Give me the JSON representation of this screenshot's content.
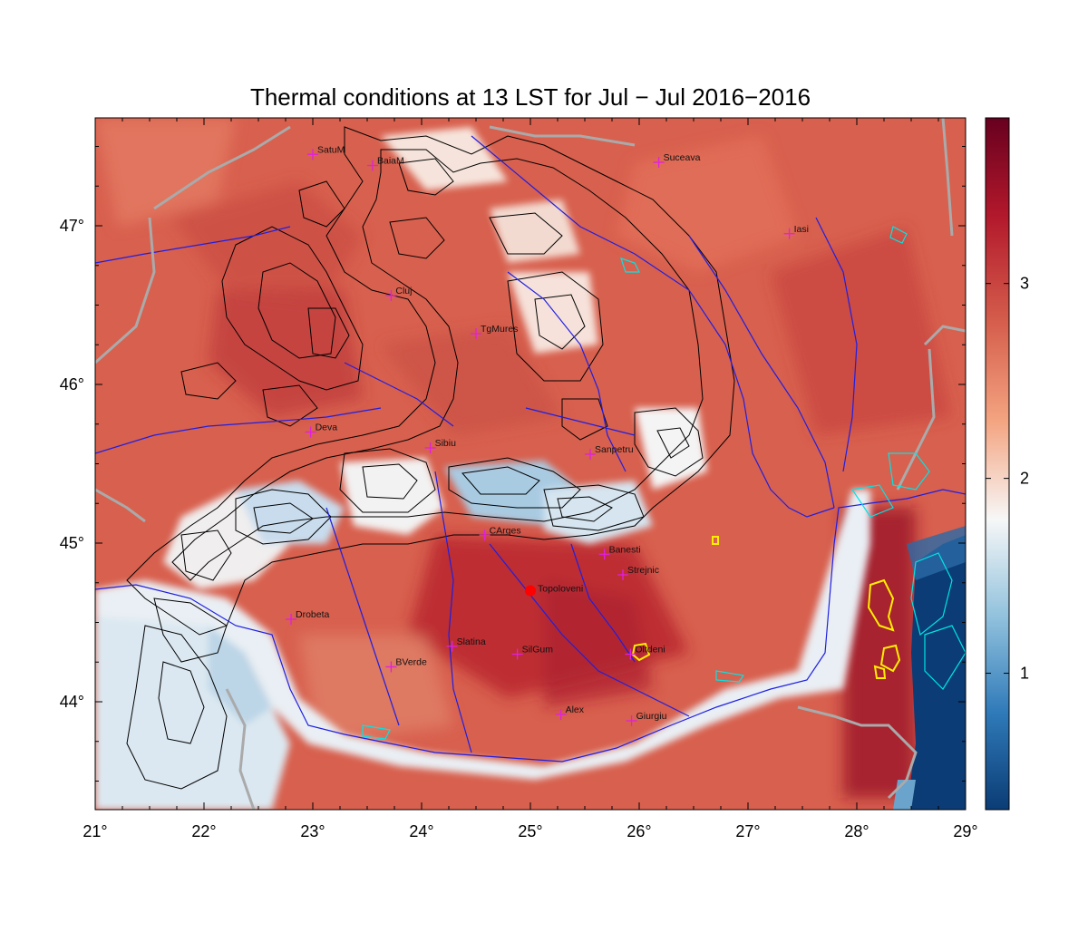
{
  "title": "Thermal conditions at 13 LST for Jul − Jul  2016−2016",
  "map": {
    "lon_range": [
      21,
      29
    ],
    "lat_range": [
      43.32,
      47.68
    ],
    "x_ticks": [
      {
        "value": 21,
        "label": "21°"
      },
      {
        "value": 22,
        "label": "22°"
      },
      {
        "value": 23,
        "label": "23°"
      },
      {
        "value": 24,
        "label": "24°"
      },
      {
        "value": 25,
        "label": "25°"
      },
      {
        "value": 26,
        "label": "26°"
      },
      {
        "value": 27,
        "label": "27°"
      },
      {
        "value": 28,
        "label": "28°"
      },
      {
        "value": 29,
        "label": "29°"
      }
    ],
    "y_ticks": [
      {
        "value": 44,
        "label": "44°"
      },
      {
        "value": 45,
        "label": "45°"
      },
      {
        "value": 46,
        "label": "46°"
      },
      {
        "value": 47,
        "label": "47°"
      }
    ],
    "cities": [
      {
        "name": "SatuM",
        "lon": 23.0,
        "lat": 47.45
      },
      {
        "name": "BaiaM",
        "lon": 23.55,
        "lat": 47.38
      },
      {
        "name": "Suceava",
        "lon": 26.18,
        "lat": 47.4
      },
      {
        "name": "Iasi",
        "lon": 27.38,
        "lat": 46.95
      },
      {
        "name": "Cluj",
        "lon": 23.72,
        "lat": 46.56
      },
      {
        "name": "TgMures",
        "lon": 24.5,
        "lat": 46.32
      },
      {
        "name": "Deva",
        "lon": 22.98,
        "lat": 45.7
      },
      {
        "name": "Sibiu",
        "lon": 24.08,
        "lat": 45.6
      },
      {
        "name": "Sanpetru",
        "lon": 25.55,
        "lat": 45.56
      },
      {
        "name": "CArges",
        "lon": 24.58,
        "lat": 45.05
      },
      {
        "name": "Banesti",
        "lon": 25.68,
        "lat": 44.93
      },
      {
        "name": "Strejnic",
        "lon": 25.85,
        "lat": 44.8
      },
      {
        "name": "Drobeta",
        "lon": 22.8,
        "lat": 44.52
      },
      {
        "name": "Slatina",
        "lon": 24.28,
        "lat": 44.35
      },
      {
        "name": "SilGum",
        "lon": 24.88,
        "lat": 44.3
      },
      {
        "name": "Oltdeni",
        "lon": 25.92,
        "lat": 44.3
      },
      {
        "name": "BVerde",
        "lon": 23.72,
        "lat": 44.22
      },
      {
        "name": "Alex",
        "lon": 25.28,
        "lat": 43.92
      },
      {
        "name": "Giurgiu",
        "lon": 25.93,
        "lat": 43.88
      }
    ],
    "highlight_station": {
      "name": "Topoloveni",
      "lon": 25.0,
      "lat": 44.7,
      "color": "#ff0000"
    },
    "city_marker_color": "#e020e0",
    "river_color": "#1f1fe0",
    "border_color": "#aaaaaa",
    "contour_color": "#000000",
    "hot_contour_color": "#ffee00",
    "lake_color": "#00e5e5"
  },
  "colorbar": {
    "min": 0.3,
    "max": 3.85,
    "ticks": [
      {
        "value": 1,
        "label": "1"
      },
      {
        "value": 2,
        "label": "2"
      },
      {
        "value": 3,
        "label": "3"
      }
    ],
    "stops": [
      "#0b3c75",
      "#2f7ab9",
      "#92c2dd",
      "#f7f7f7",
      "#f4a582",
      "#d6604d",
      "#b2182b",
      "#67001f"
    ]
  }
}
